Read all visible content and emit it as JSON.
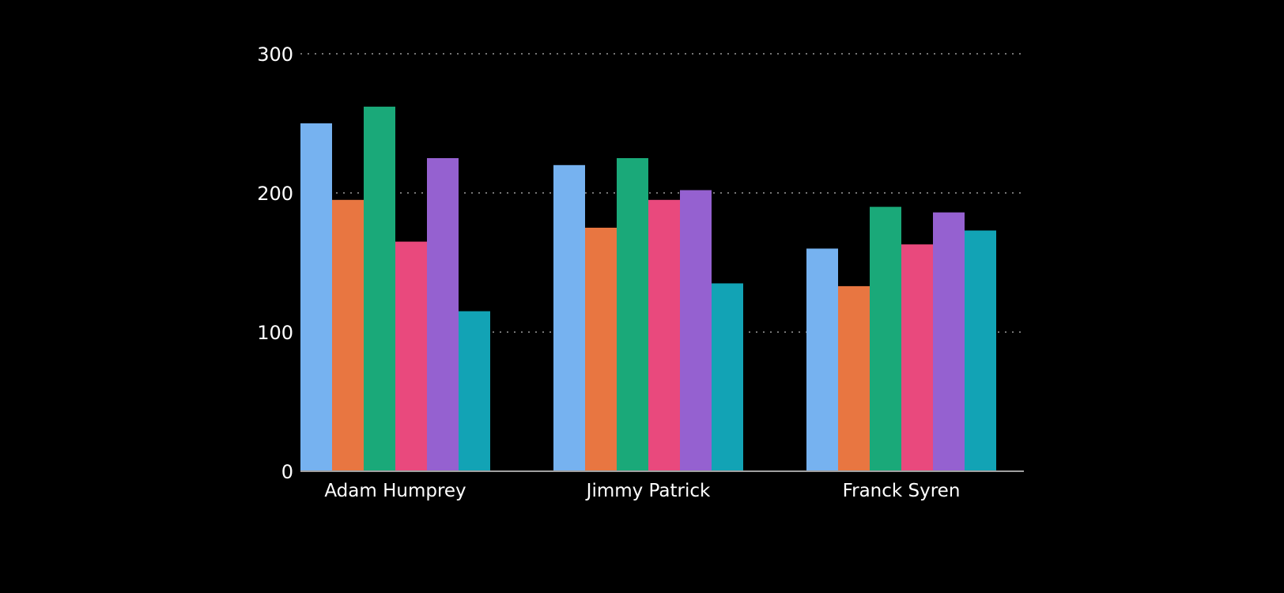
{
  "chart_data": {
    "type": "bar",
    "title": "",
    "xlabel": "",
    "ylabel": "",
    "categories": [
      "Adam Humprey",
      "Jimmy Patrick",
      "Franck Syren"
    ],
    "series": [
      {
        "color": "#76b2f0",
        "values": [
          250,
          220,
          160
        ]
      },
      {
        "color": "#e87641",
        "values": [
          195,
          175,
          133
        ]
      },
      {
        "color": "#1aa979",
        "values": [
          262,
          225,
          190
        ]
      },
      {
        "color": "#e9497d",
        "values": [
          165,
          195,
          163
        ]
      },
      {
        "color": "#9561d0",
        "values": [
          225,
          202,
          186
        ]
      },
      {
        "color": "#12a3b5",
        "values": [
          115,
          135,
          173
        ]
      }
    ],
    "ylim": [
      0,
      300
    ],
    "yticks": [
      "0",
      "100",
      "200",
      "300"
    ],
    "grid": true,
    "legend": "none"
  },
  "colors": {
    "background": "#000000",
    "text": "#ffffff",
    "grid": "#9a9a9a"
  }
}
